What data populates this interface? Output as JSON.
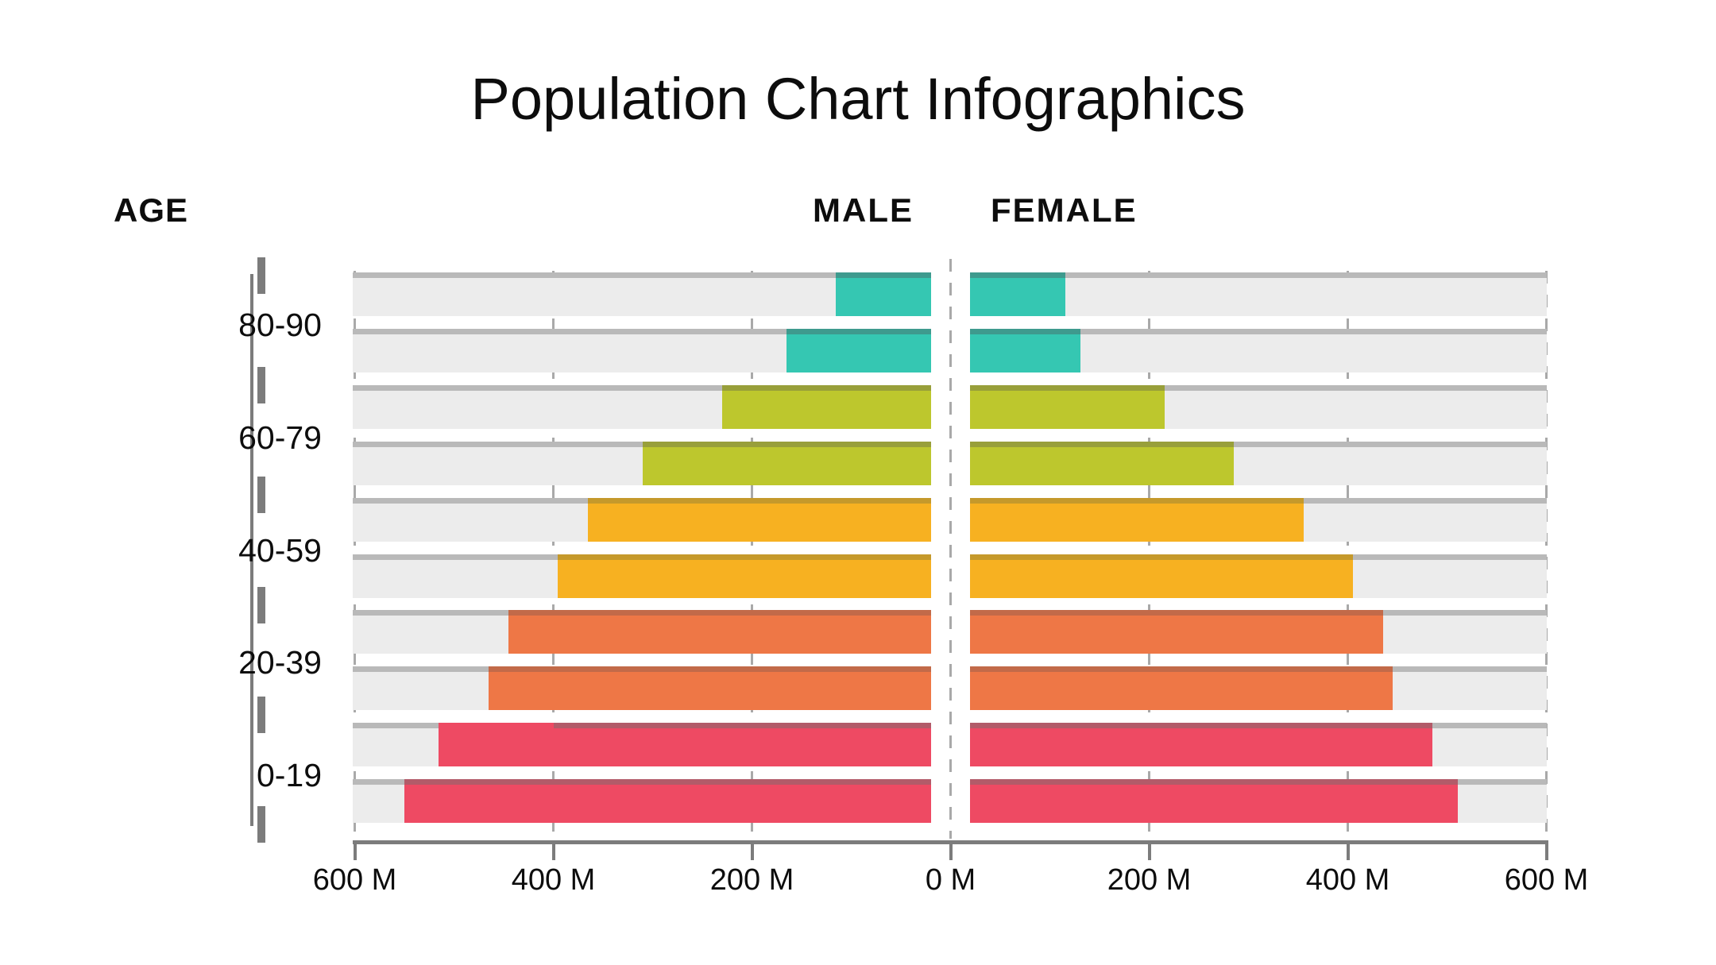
{
  "title": "Population Chart Infographics",
  "labels": {
    "age": "AGE",
    "male": "MALE",
    "female": "FEMALE"
  },
  "x_axis": {
    "tick_labels": [
      "600 M",
      "400 M",
      "200 M",
      "0 M",
      "200 M",
      "400 M",
      "600 M"
    ],
    "tick_values": [
      -600,
      -400,
      -200,
      0,
      200,
      400,
      600
    ],
    "unit": "M"
  },
  "chart_data": {
    "type": "bar",
    "variant": "population-pyramid",
    "orientation": "horizontal",
    "title": "Population Chart Infographics",
    "categories": [
      "80-90",
      "60-79",
      "40-59",
      "20-39",
      "0-19"
    ],
    "bars_per_category": 2,
    "unit": "millions",
    "xlabel": "",
    "ylabel": "AGE",
    "xlim_abs": [
      0,
      600
    ],
    "grid": "dashed-vertical",
    "legend_position": "none",
    "series": [
      {
        "name": "MALE",
        "side": "left",
        "values": [
          [
            115,
            165
          ],
          [
            230,
            310
          ],
          [
            365,
            395
          ],
          [
            445,
            465
          ],
          [
            515,
            550
          ]
        ]
      },
      {
        "name": "FEMALE",
        "side": "right",
        "values": [
          [
            115,
            130
          ],
          [
            215,
            285
          ],
          [
            355,
            405
          ],
          [
            435,
            445
          ],
          [
            485,
            510
          ]
        ]
      }
    ],
    "group_colors": [
      {
        "age": "80-90",
        "fill": "#35c7b2",
        "edge": "#3e9a8e"
      },
      {
        "age": "60-79",
        "fill": "#bdc72d",
        "edge": "#989f3a"
      },
      {
        "age": "40-59",
        "fill": "#f7b121",
        "edge": "#c5992b"
      },
      {
        "age": "20-39",
        "fill": "#ee7746",
        "edge": "#c26a49"
      },
      {
        "age": "0-19",
        "fill": "#ee4a63",
        "edge": "#b25b69"
      }
    ],
    "track_color": "#ececec",
    "track_edge_color": "#b9b9b9",
    "axis_color": "#7c7c7c",
    "gridline_color": "#a9a9a9",
    "text_color": "#0d0d0d"
  }
}
